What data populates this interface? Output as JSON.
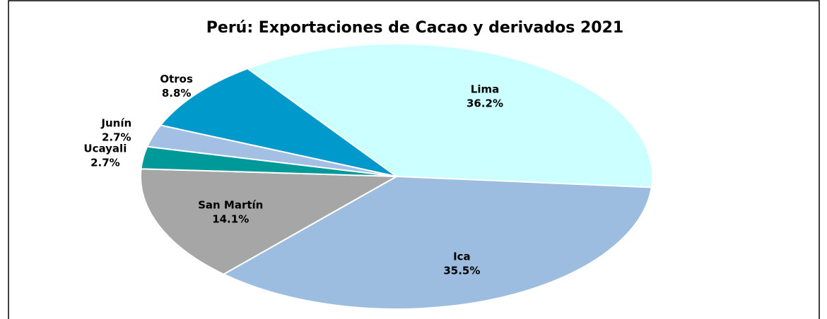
{
  "chart_data": {
    "type": "pie",
    "title": "Perú: Exportaciones de Cacao y derivados 2021",
    "categories": [
      "Lima",
      "Ica",
      "San Martín",
      "Ucayali",
      "Junín",
      "Otros"
    ],
    "values": [
      36.2,
      35.5,
      14.1,
      2.7,
      2.7,
      8.8
    ],
    "value_labels": [
      "36.2%",
      "35.5%",
      "14.1%",
      "2.7%",
      "2.7%",
      "8.8%"
    ],
    "colors": [
      "#ccffff",
      "#9dbde0",
      "#a6a6a6",
      "#009999",
      "#a3bfe3",
      "#0099cc"
    ]
  }
}
